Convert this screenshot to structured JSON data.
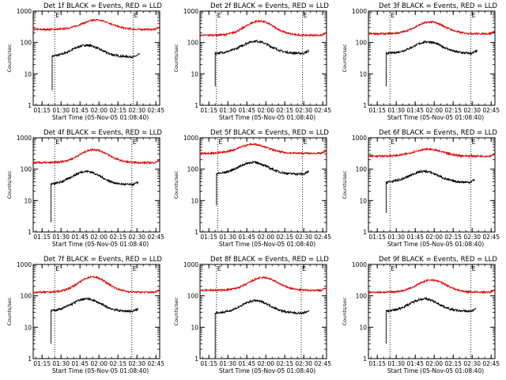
{
  "figure": {
    "xlabel": "Start Time (05-Nov-05 01:08:40)",
    "ylabel": "Counts/sec",
    "colors": {
      "events": "#000000",
      "lld": "#e00000",
      "axes": "#000000",
      "markers": "#000000"
    }
  },
  "chart_data": [
    {
      "type": "line",
      "title": "Det 1f BLACK = Events, RED = LLD",
      "xlabel": "Start Time (05-Nov-05 01:08:40)",
      "ylabel": "Counts/sec",
      "x_ticks": [
        "01:15",
        "01:30",
        "01:45",
        "02:00",
        "02:15",
        "02:30",
        "02:45"
      ],
      "y_ticks": [
        "1",
        "10",
        "100",
        "1000"
      ],
      "y_scale": "log",
      "ylim": [
        1,
        1000
      ],
      "grid": false,
      "markers": [
        {
          "time": "01:25",
          "flag": "E"
        },
        {
          "time": "02:27",
          "flag": "E"
        }
      ],
      "series": [
        {
          "name": "Events",
          "color": "#000000",
          "start": "01:23",
          "end": "02:32",
          "spike": {
            "time": "01:23",
            "value": 3
          },
          "base": 35,
          "peak": 82,
          "peak_time": "01:50"
        },
        {
          "name": "LLD",
          "color": "#e00000",
          "start": "01:08",
          "end": "02:48",
          "base": 260,
          "peak": 520,
          "peak_time": "01:58"
        }
      ]
    },
    {
      "type": "line",
      "title": "Det 2f BLACK = Events, RED = LLD",
      "xlabel": "Start Time (05-Nov-05 01:08:40)",
      "ylabel": "Counts/sec",
      "x_ticks": [
        "01:15",
        "01:30",
        "01:45",
        "02:00",
        "02:15",
        "02:30",
        "02:45"
      ],
      "y_ticks": [
        "1",
        "10",
        "100",
        "1000"
      ],
      "y_scale": "log",
      "ylim": [
        1,
        1000
      ],
      "grid": false,
      "markers": [
        {
          "time": "01:21",
          "flag": "E"
        },
        {
          "time": "02:29",
          "flag": "E"
        }
      ],
      "series": [
        {
          "name": "Events",
          "color": "#000000",
          "start": "01:20",
          "end": "02:34",
          "spike": {
            "time": "01:20",
            "value": 4
          },
          "base": 45,
          "peak": 110,
          "peak_time": "01:52"
        },
        {
          "name": "LLD",
          "color": "#e00000",
          "start": "01:08",
          "end": "02:48",
          "base": 170,
          "peak": 480,
          "peak_time": "01:55"
        }
      ]
    },
    {
      "type": "line",
      "title": "Det 3f BLACK = Events, RED = LLD",
      "xlabel": "Start Time (05-Nov-05 01:08:40)",
      "ylabel": "Counts/sec",
      "x_ticks": [
        "01:15",
        "01:30",
        "01:45",
        "02:00",
        "02:15",
        "02:30",
        "02:45"
      ],
      "y_ticks": [
        "1",
        "10",
        "100",
        "1000"
      ],
      "y_scale": "log",
      "ylim": [
        1,
        1000
      ],
      "grid": false,
      "markers": [
        {
          "time": "01:25",
          "flag": "E"
        },
        {
          "time": "02:29",
          "flag": "E"
        }
      ],
      "series": [
        {
          "name": "Events",
          "color": "#000000",
          "start": "01:22",
          "end": "02:34",
          "spike": {
            "time": "01:22",
            "value": 4
          },
          "base": 45,
          "peak": 105,
          "peak_time": "01:55"
        },
        {
          "name": "LLD",
          "color": "#e00000",
          "start": "01:08",
          "end": "02:48",
          "base": 190,
          "peak": 450,
          "peak_time": "01:57"
        }
      ]
    },
    {
      "type": "line",
      "title": "Det 4f BLACK = Events, RED = LLD",
      "xlabel": "Start Time (05-Nov-05 01:08:40)",
      "ylabel": "Counts/sec",
      "x_ticks": [
        "01:15",
        "01:30",
        "01:45",
        "02:00",
        "02:15",
        "02:30",
        "02:45"
      ],
      "y_ticks": [
        "1",
        "10",
        "100",
        "1000"
      ],
      "y_scale": "log",
      "ylim": [
        1,
        1000
      ],
      "grid": false,
      "markers": [
        {
          "time": "01:25",
          "flag": "E"
        },
        {
          "time": "02:26",
          "flag": "E"
        }
      ],
      "series": [
        {
          "name": "Events",
          "color": "#000000",
          "start": "01:22",
          "end": "02:31",
          "spike": {
            "time": "01:22",
            "value": 2
          },
          "base": 32,
          "peak": 85,
          "peak_time": "01:50"
        },
        {
          "name": "LLD",
          "color": "#e00000",
          "start": "01:08",
          "end": "02:48",
          "base": 160,
          "peak": 420,
          "peak_time": "01:56"
        }
      ]
    },
    {
      "type": "line",
      "title": "Det 5f BLACK = Events, RED = LLD",
      "xlabel": "Start Time (05-Nov-05 01:08:40)",
      "ylabel": "Counts/sec",
      "x_ticks": [
        "01:15",
        "01:30",
        "01:45",
        "02:00",
        "02:15",
        "02:30",
        "02:45"
      ],
      "y_ticks": [
        "1",
        "10",
        "100",
        "1000"
      ],
      "y_scale": "log",
      "ylim": [
        1,
        1000
      ],
      "grid": false,
      "markers": [
        {
          "time": "01:22",
          "flag": "E"
        },
        {
          "time": "02:29",
          "flag": "E"
        }
      ],
      "series": [
        {
          "name": "Events",
          "color": "#000000",
          "start": "01:21",
          "end": "02:34",
          "spike": {
            "time": "01:21",
            "value": 7
          },
          "base": 70,
          "peak": 165,
          "peak_time": "01:50"
        },
        {
          "name": "LLD",
          "color": "#e00000",
          "start": "01:08",
          "end": "02:48",
          "base": 320,
          "peak": 620,
          "peak_time": "01:50"
        }
      ]
    },
    {
      "type": "line",
      "title": "Det 6f BLACK = Events, RED = LLD",
      "xlabel": "Start Time (05-Nov-05 01:08:40)",
      "ylabel": "Counts/sec",
      "x_ticks": [
        "01:15",
        "01:30",
        "01:45",
        "02:00",
        "02:15",
        "02:30",
        "02:45"
      ],
      "y_ticks": [
        "1",
        "10",
        "100",
        "1000"
      ],
      "y_scale": "log",
      "ylim": [
        1,
        1000
      ],
      "grid": false,
      "markers": [
        {
          "time": "01:25",
          "flag": "E"
        },
        {
          "time": "02:29",
          "flag": "E"
        }
      ],
      "series": [
        {
          "name": "Events",
          "color": "#000000",
          "start": "01:22",
          "end": "02:32",
          "spike": {
            "time": "01:22",
            "value": 4
          },
          "base": 38,
          "peak": 85,
          "peak_time": "01:52"
        },
        {
          "name": "LLD",
          "color": "#e00000",
          "start": "01:08",
          "end": "02:48",
          "base": 260,
          "peak": 430,
          "peak_time": "01:55"
        }
      ]
    },
    {
      "type": "line",
      "title": "Det 7f BLACK = Events, RED = LLD",
      "xlabel": "Start Time (05-Nov-05 01:08:40)",
      "ylabel": "Counts/sec",
      "x_ticks": [
        "01:15",
        "01:30",
        "01:45",
        "02:00",
        "02:15",
        "02:30",
        "02:45"
      ],
      "y_ticks": [
        "1",
        "10",
        "100",
        "1000"
      ],
      "y_scale": "log",
      "ylim": [
        1,
        1000
      ],
      "grid": false,
      "markers": [
        {
          "time": "01:25",
          "flag": "E"
        },
        {
          "time": "02:26",
          "flag": "E"
        }
      ],
      "series": [
        {
          "name": "Events",
          "color": "#000000",
          "start": "01:22",
          "end": "02:31",
          "spike": {
            "time": "01:22",
            "value": 3
          },
          "base": 32,
          "peak": 80,
          "peak_time": "01:50"
        },
        {
          "name": "LLD",
          "color": "#e00000",
          "start": "01:08",
          "end": "02:48",
          "base": 130,
          "peak": 400,
          "peak_time": "01:55"
        }
      ]
    },
    {
      "type": "line",
      "title": "Det 8f BLACK = Events, RED = LLD",
      "xlabel": "Start Time (05-Nov-05 01:08:40)",
      "ylabel": "Counts/sec",
      "x_ticks": [
        "01:15",
        "01:30",
        "01:45",
        "02:00",
        "02:15",
        "02:30",
        "02:45"
      ],
      "y_ticks": [
        "1",
        "10",
        "100",
        "1000"
      ],
      "y_scale": "log",
      "ylim": [
        1,
        1000
      ],
      "grid": false,
      "markers": [
        {
          "time": "01:21",
          "flag": "E"
        },
        {
          "time": "02:28",
          "flag": "E"
        }
      ],
      "series": [
        {
          "name": "Events",
          "color": "#000000",
          "start": "01:20",
          "end": "02:34",
          "spike": {
            "time": "01:20",
            "value": 1
          },
          "base": 28,
          "peak": 70,
          "peak_time": "01:52"
        },
        {
          "name": "LLD",
          "color": "#e00000",
          "start": "01:08",
          "end": "02:48",
          "base": 150,
          "peak": 380,
          "peak_time": "01:58"
        }
      ]
    },
    {
      "type": "line",
      "title": "Det 9f BLACK = Events, RED = LLD",
      "xlabel": "Start Time (05-Nov-05 01:08:40)",
      "ylabel": "Counts/sec",
      "x_ticks": [
        "01:15",
        "01:30",
        "01:45",
        "02:00",
        "02:15",
        "02:30",
        "02:45"
      ],
      "y_ticks": [
        "1",
        "10",
        "100",
        "1000"
      ],
      "y_scale": "log",
      "ylim": [
        1,
        1000
      ],
      "grid": false,
      "markers": [
        {
          "time": "01:25",
          "flag": "E"
        },
        {
          "time": "02:29",
          "flag": "E"
        }
      ],
      "series": [
        {
          "name": "Events",
          "color": "#000000",
          "start": "01:22",
          "end": "02:33",
          "spike": {
            "time": "01:22",
            "value": 3
          },
          "base": 32,
          "peak": 80,
          "peak_time": "01:52"
        },
        {
          "name": "LLD",
          "color": "#e00000",
          "start": "01:08",
          "end": "02:48",
          "base": 130,
          "peak": 320,
          "peak_time": "01:58"
        }
      ]
    }
  ]
}
